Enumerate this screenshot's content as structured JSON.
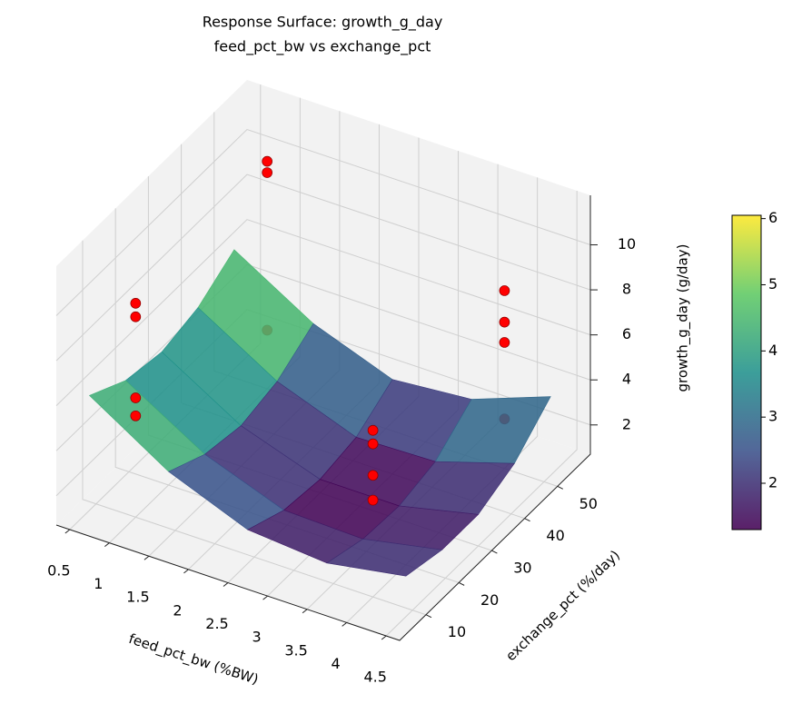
{
  "chart_data": {
    "type": "surface3d",
    "title": "Response Surface: growth_g_day",
    "subtitle": "feed_pct_bw vs exchange_pct",
    "x_label": "feed_pct_bw (%BW)",
    "y_label": "exchange_pct (%/day)",
    "z_label": "growth_g_day (g/day)",
    "xlim": [
      0.33,
      4.67
    ],
    "xticks": [
      0.5,
      1.0,
      1.5,
      2.0,
      2.5,
      3.0,
      3.5,
      4.0,
      4.5
    ],
    "ylim": [
      2,
      60
    ],
    "yticks": [
      10,
      20,
      30,
      40,
      50
    ],
    "zlim": [
      0.7,
      12.2
    ],
    "zticks": [
      2,
      4,
      6,
      8,
      10
    ],
    "clim": [
      1.3,
      6.05
    ],
    "cticks": [
      2,
      3,
      4,
      5,
      6
    ],
    "surface": {
      "x": [
        0.5,
        1.5,
        2.5,
        3.5,
        4.5
      ],
      "y": [
        8,
        19,
        30,
        41,
        52
      ],
      "z": [
        [
          5.8,
          4.9,
          4.6,
          5.0,
          6.0
        ],
        [
          3.6,
          2.8,
          2.5,
          2.9,
          3.9
        ],
        [
          2.2,
          1.5,
          1.3,
          1.6,
          2.6
        ],
        [
          1.9,
          1.4,
          1.3,
          1.7,
          2.9
        ],
        [
          2.5,
          2.1,
          2.1,
          2.8,
          4.2
        ]
      ]
    },
    "points": {
      "color": "#ff0000",
      "x": [
        1,
        1,
        1,
        1,
        1,
        1,
        1,
        4,
        4,
        4,
        4,
        4,
        4,
        4,
        4
      ],
      "y": [
        10,
        10,
        10,
        10,
        50,
        50,
        50,
        10,
        10,
        10,
        10,
        50,
        50,
        50,
        50
      ],
      "z": [
        10.2,
        9.6,
        6.0,
        5.2,
        10.8,
        10.3,
        3.3,
        8.1,
        7.5,
        6.1,
        5.0,
        8.6,
        7.2,
        6.3,
        2.9
      ]
    }
  }
}
